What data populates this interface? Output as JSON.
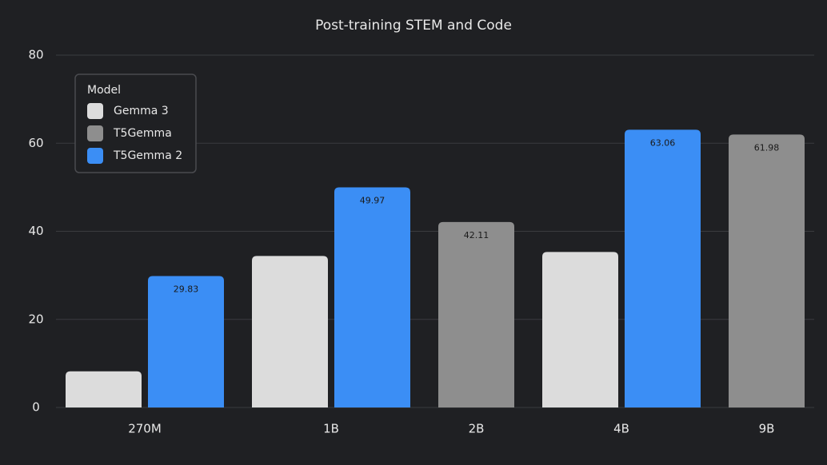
{
  "chart_data": {
    "type": "bar",
    "title": "Post-training STEM and Code",
    "categories": [
      "270M",
      "1B",
      "2B",
      "4B",
      "9B"
    ],
    "series": [
      {
        "name": "Gemma 3",
        "color": "#dcdcdc",
        "values": [
          8.2,
          34.4,
          null,
          35.3,
          null
        ],
        "labels": false
      },
      {
        "name": "T5Gemma",
        "color": "#8e8e8e",
        "values": [
          null,
          null,
          42.11,
          null,
          61.98
        ],
        "labels": true
      },
      {
        "name": "T5Gemma 2",
        "color": "#3b8ef5",
        "values": [
          29.83,
          49.97,
          null,
          63.06,
          null
        ],
        "labels": true
      }
    ],
    "legend_title": "Model",
    "legend": "upper left",
    "ylim": [
      0,
      80
    ],
    "yticks": [
      0,
      20,
      40,
      60,
      80
    ],
    "grid": true
  }
}
